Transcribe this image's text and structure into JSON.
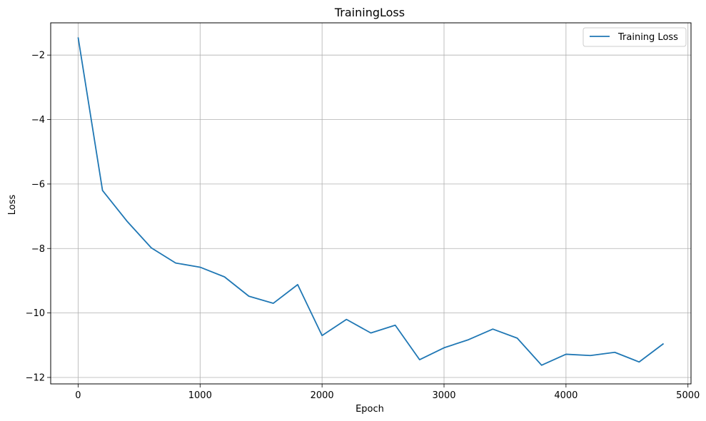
{
  "chart_data": {
    "type": "line",
    "title": "TrainingLoss",
    "xlabel": "Epoch",
    "ylabel": "Loss",
    "xlim": [
      -225,
      5025
    ],
    "ylim": [
      -12.2,
      -1.0
    ],
    "xticks": [
      0,
      1000,
      2000,
      3000,
      4000,
      5000
    ],
    "yticks": [
      -2,
      -4,
      -6,
      -8,
      -10,
      -12
    ],
    "xtick_labels": [
      "0",
      "1000",
      "2000",
      "3000",
      "4000",
      "5000"
    ],
    "ytick_labels": [
      "−2",
      "−4",
      "−6",
      "−8",
      "−10",
      "−12"
    ],
    "grid": true,
    "legend": "top-right",
    "series": [
      {
        "name": "Training Loss",
        "color": "#1f77b4",
        "x": [
          0,
          200,
          400,
          600,
          800,
          1000,
          1200,
          1400,
          1600,
          1800,
          2000,
          2200,
          2400,
          2600,
          2800,
          3000,
          3200,
          3400,
          3600,
          3800,
          4000,
          4200,
          4400,
          4600,
          4800
        ],
        "y": [
          -1.45,
          -6.2,
          -7.15,
          -7.98,
          -8.45,
          -8.58,
          -8.88,
          -9.48,
          -9.7,
          -9.12,
          -10.7,
          -10.2,
          -10.62,
          -10.38,
          -11.45,
          -11.08,
          -10.83,
          -10.5,
          -10.78,
          -11.62,
          -11.28,
          -11.32,
          -11.22,
          -11.52,
          -10.95
        ]
      }
    ]
  }
}
